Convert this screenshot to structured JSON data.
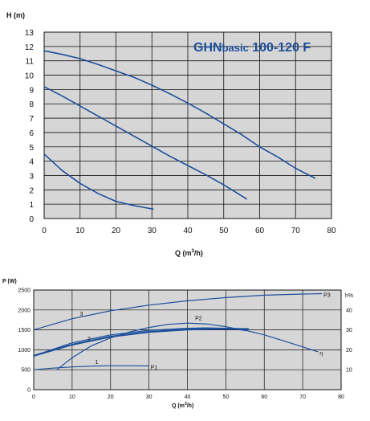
{
  "chart_data": [
    {
      "type": "line",
      "title_main": "GHN",
      "title_small": "basic",
      "title_rest": " 100-120 F",
      "ylabel": "H (m)",
      "xlabel_main": "Q (m",
      "xlabel_sup": "3",
      "xlabel_end": "/h)",
      "xlim": [
        0,
        80
      ],
      "ylim": [
        0,
        13
      ],
      "xticks": [
        "0",
        "10",
        "20",
        "30",
        "40",
        "50",
        "60",
        "70",
        "80"
      ],
      "yticks": [
        "0",
        "1",
        "2",
        "3",
        "4",
        "5",
        "6",
        "7",
        "8",
        "9",
        "10",
        "11",
        "12",
        "13"
      ],
      "grid": true,
      "series": [
        {
          "x": [
            0,
            5,
            10,
            15,
            20,
            25,
            30,
            35,
            40,
            45,
            50,
            55,
            60,
            65,
            70,
            75.5
          ],
          "y": [
            11.7,
            11.45,
            11.15,
            10.75,
            10.3,
            9.85,
            9.3,
            8.7,
            8.05,
            7.35,
            6.6,
            5.85,
            5.0,
            4.3,
            3.5,
            2.8
          ]
        },
        {
          "x": [
            0,
            5,
            10,
            15,
            20,
            25,
            30,
            35,
            40,
            45,
            50,
            56.5
          ],
          "y": [
            9.2,
            8.55,
            7.85,
            7.15,
            6.45,
            5.75,
            5.05,
            4.35,
            3.7,
            3.05,
            2.35,
            1.35
          ]
        },
        {
          "x": [
            0,
            5,
            10,
            15,
            20,
            25,
            30.5
          ],
          "y": [
            4.5,
            3.35,
            2.45,
            1.75,
            1.2,
            0.9,
            0.65
          ]
        }
      ]
    },
    {
      "type": "line",
      "ylabel": "P (W)",
      "y2label": "h%",
      "xlabel_main": "Q (m",
      "xlabel_sup": "3",
      "xlabel_end": "/h)",
      "xlim": [
        0,
        80
      ],
      "ylim": [
        0,
        2500
      ],
      "y2lim": [
        0,
        50
      ],
      "xticks": [
        "0",
        "10",
        "20",
        "30",
        "40",
        "50",
        "60",
        "70",
        "80"
      ],
      "yticks": [
        "0",
        "500",
        "1000",
        "1500",
        "2000",
        "2500"
      ],
      "y2ticks": [
        "10",
        "20",
        "30",
        "40"
      ],
      "grid": true,
      "series": [
        {
          "name": "3",
          "end_label": "P3",
          "x": [
            0,
            10,
            20,
            30,
            40,
            50,
            60,
            70,
            75
          ],
          "y": [
            1500,
            1780,
            1980,
            2120,
            2230,
            2310,
            2370,
            2400,
            2410
          ]
        },
        {
          "name": "2",
          "end_label": "P2",
          "x": [
            6,
            10,
            15,
            20,
            25,
            30,
            35,
            40,
            45,
            50,
            55
          ],
          "y": [
            500,
            800,
            1100,
            1300,
            1450,
            1560,
            1640,
            1670,
            1650,
            1580,
            1480
          ]
        },
        {
          "name": "2",
          "x": [
            0,
            10,
            20,
            30,
            40,
            50,
            56
          ],
          "y": [
            850,
            1130,
            1330,
            1450,
            1510,
            1530,
            1520
          ]
        },
        {
          "name": "1",
          "end_label": "P1",
          "x": [
            0,
            5,
            10,
            15,
            20,
            25,
            30
          ],
          "y": [
            500,
            540,
            570,
            590,
            600,
            600,
            595
          ]
        },
        {
          "name": "h",
          "end_label": "η",
          "axis": "right",
          "x": [
            0,
            10,
            20,
            30,
            40,
            45,
            50,
            55,
            60,
            65,
            70,
            74
          ],
          "y": [
            17,
            23.5,
            27.5,
            29.8,
            30.8,
            31,
            30.8,
            29.8,
            27.5,
            24.5,
            21.5,
            19
          ]
        }
      ]
    }
  ]
}
